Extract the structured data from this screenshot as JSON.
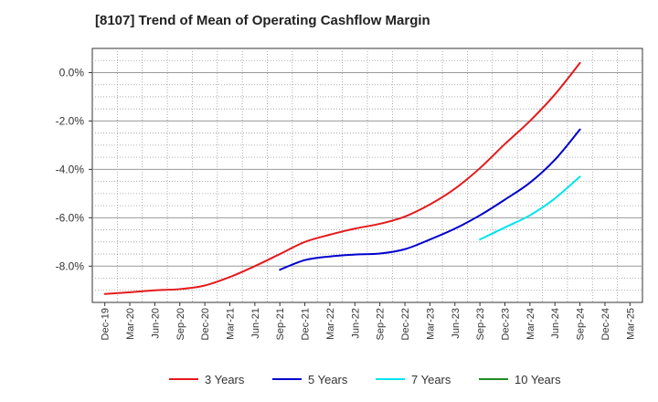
{
  "chart_data": {
    "type": "line",
    "title": "[8107]  Trend of Mean of Operating Cashflow Margin",
    "xlabel": "",
    "ylabel": "",
    "ylim": [
      -9.5,
      1.0
    ],
    "y_ticks": [
      0.0,
      -2.0,
      -4.0,
      -6.0,
      -8.0
    ],
    "y_tick_labels": [
      "0.0%",
      "-2.0%",
      "-4.0%",
      "-6.0%",
      "-8.0%"
    ],
    "categories": [
      "Dec-19",
      "Mar-20",
      "Jun-20",
      "Sep-20",
      "Dec-20",
      "Mar-21",
      "Jun-21",
      "Sep-21",
      "Dec-21",
      "Mar-22",
      "Jun-22",
      "Sep-22",
      "Dec-22",
      "Mar-23",
      "Jun-23",
      "Sep-23",
      "Dec-23",
      "Mar-24",
      "Jun-24",
      "Sep-24",
      "Dec-24",
      "Mar-25"
    ],
    "grid": true,
    "legend_position": "bottom",
    "series": [
      {
        "name": "3 Years",
        "color": "#e41a1c",
        "values": [
          -9.15,
          -9.08,
          -9.0,
          -8.95,
          -8.8,
          -8.45,
          -8.0,
          -7.5,
          -7.0,
          -6.7,
          -6.45,
          -6.25,
          -5.95,
          -5.45,
          -4.8,
          -3.95,
          -2.95,
          -2.0,
          -0.9,
          0.4,
          null,
          null
        ]
      },
      {
        "name": "5 Years",
        "color": "#0000cc",
        "values": [
          null,
          null,
          null,
          null,
          null,
          null,
          null,
          -8.15,
          -7.75,
          -7.6,
          -7.52,
          -7.48,
          -7.3,
          -6.9,
          -6.45,
          -5.9,
          -5.25,
          -4.55,
          -3.6,
          -2.35,
          null,
          null
        ]
      },
      {
        "name": "7 Years",
        "color": "#00e5ee",
        "values": [
          null,
          null,
          null,
          null,
          null,
          null,
          null,
          null,
          null,
          null,
          null,
          null,
          null,
          null,
          null,
          -6.9,
          -6.4,
          -5.9,
          -5.2,
          -4.3,
          null,
          null
        ]
      },
      {
        "name": "10 Years",
        "color": "#228b22",
        "values": [
          null,
          null,
          null,
          null,
          null,
          null,
          null,
          null,
          null,
          null,
          null,
          null,
          null,
          null,
          null,
          null,
          null,
          null,
          null,
          null,
          null,
          null
        ]
      }
    ]
  }
}
